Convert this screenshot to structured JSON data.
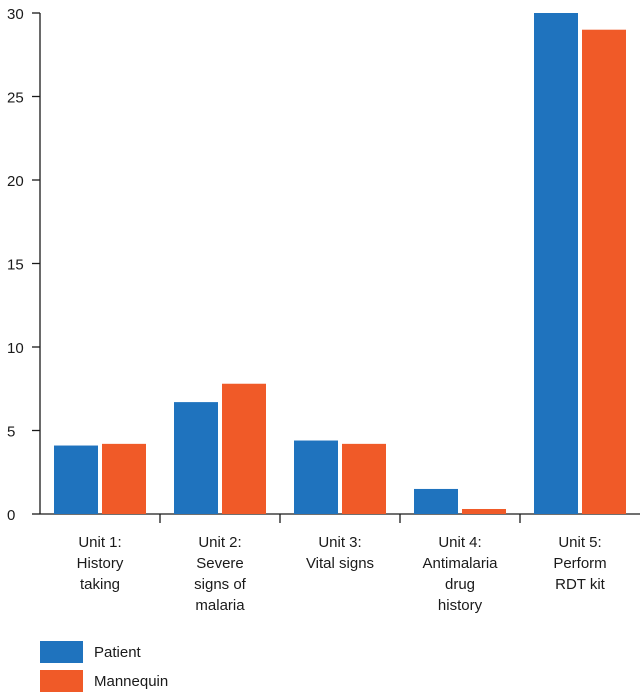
{
  "chart_data": {
    "type": "bar",
    "categories": [
      [
        "Unit 1:",
        "History",
        "taking"
      ],
      [
        "Unit 2:",
        "Severe",
        "signs of",
        "malaria"
      ],
      [
        "Unit 3:",
        "Vital signs"
      ],
      [
        "Unit 4:",
        "Antimalaria",
        "drug",
        "history"
      ],
      [
        "Unit 5:",
        "Perform",
        "RDT kit"
      ]
    ],
    "series": [
      {
        "name": "Patient",
        "color": "#1f73be",
        "values": [
          4.1,
          6.7,
          4.4,
          1.5,
          30
        ]
      },
      {
        "name": "Mannequin",
        "color": "#f05a28",
        "values": [
          4.2,
          7.8,
          4.2,
          0.3,
          29
        ]
      }
    ],
    "ylim": [
      0,
      30
    ],
    "yticks": [
      "0",
      "5",
      "10",
      "15",
      "20",
      "25",
      "30"
    ],
    "grid": false,
    "legend_position": "bottom-left"
  }
}
